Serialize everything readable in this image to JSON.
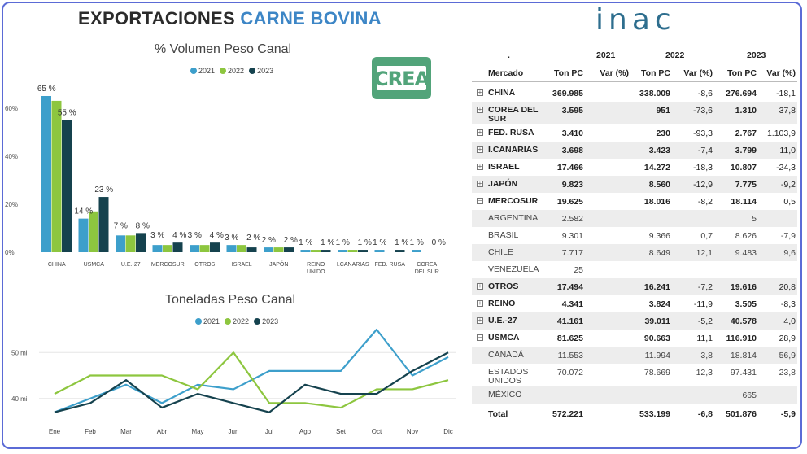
{
  "title": {
    "part1": "EXPORTACIONES",
    "part2": "CARNE BOVINA"
  },
  "logos": {
    "inac": "inac",
    "crea": "CREA"
  },
  "colors": {
    "y2021": "#3d9fcb",
    "y2022": "#8dc63f",
    "y2023": "#15424e"
  },
  "chart_data": [
    {
      "type": "bar",
      "title": "% Volumen Peso Canal",
      "legend": [
        "2021",
        "2022",
        "2023"
      ],
      "categories": [
        "CHINA",
        "USMCA",
        "U.E.-27",
        "MERCOSUR",
        "OTROS",
        "ISRAEL",
        "JAPÓN",
        "REINO UNIDO",
        "I.CANARIAS",
        "FED. RUSA",
        "COREA DEL SUR"
      ],
      "series": [
        {
          "name": "2021",
          "values": [
            65,
            14,
            7,
            3,
            3,
            3,
            2,
            1,
            1,
            1,
            1
          ]
        },
        {
          "name": "2022",
          "values": [
            63,
            17,
            7,
            3,
            3,
            3,
            2,
            1,
            1,
            0,
            0
          ]
        },
        {
          "name": "2023",
          "values": [
            55,
            23,
            8,
            4,
            4,
            2,
            2,
            1,
            1,
            1,
            0
          ]
        }
      ],
      "data_labels": [
        "65 %",
        "55 %",
        "14 %",
        "23 %",
        "7 %",
        "8 %",
        "3 %",
        "4 %",
        "3 %",
        "4 %",
        "3 %",
        "2 %",
        "2 %",
        "2 %",
        "1 %",
        "1 %",
        "1 %",
        "1 %",
        "1 %",
        "1 %",
        "1 %",
        "0 %"
      ],
      "yticks": [
        "0%",
        "20%",
        "40%",
        "60%"
      ],
      "ylim": [
        0,
        65
      ]
    },
    {
      "type": "line",
      "title": "Toneladas Peso Canal",
      "legend": [
        "2021",
        "2022",
        "2023"
      ],
      "x": [
        "Ene",
        "Feb",
        "Mar",
        "Abr",
        "May",
        "Jun",
        "Jul",
        "Ago",
        "Set",
        "Oct",
        "Nov",
        "Dic"
      ],
      "series": [
        {
          "name": "2021",
          "values": [
            37,
            40,
            43,
            39,
            43,
            42,
            46,
            46,
            46,
            55,
            45,
            49
          ]
        },
        {
          "name": "2022",
          "values": [
            41,
            45,
            45,
            45,
            42,
            50,
            39,
            39,
            38,
            42,
            42,
            44
          ]
        },
        {
          "name": "2023",
          "values": [
            37,
            39,
            44,
            38,
            41,
            39,
            37,
            43,
            41,
            41,
            46,
            50
          ]
        }
      ],
      "yticks": [
        "40 mil",
        "50 mil"
      ],
      "ylim": [
        35,
        55
      ]
    },
    {
      "type": "table",
      "header_marker": ".",
      "years": [
        "2021",
        "2022",
        "2023"
      ],
      "columns": [
        "Mercado",
        "Ton PC",
        "Var (%)",
        "Ton PC",
        "Var (%)",
        "Ton PC",
        "Var (%)"
      ],
      "rows": [
        {
          "name": "CHINA",
          "level": 0,
          "cells": [
            "369.985",
            "",
            "338.009",
            "-8,6",
            "276.694",
            "-18,1"
          ]
        },
        {
          "name": "COREA DEL SUR",
          "level": 0,
          "cells": [
            "3.595",
            "",
            "951",
            "-73,6",
            "1.310",
            "37,8"
          ]
        },
        {
          "name": "FED. RUSA",
          "level": 0,
          "cells": [
            "3.410",
            "",
            "230",
            "-93,3",
            "2.767",
            "1.103,9"
          ]
        },
        {
          "name": "I.CANARIAS",
          "level": 0,
          "cells": [
            "3.698",
            "",
            "3.423",
            "-7,4",
            "3.799",
            "11,0"
          ]
        },
        {
          "name": "ISRAEL",
          "level": 0,
          "cells": [
            "17.466",
            "",
            "14.272",
            "-18,3",
            "10.807",
            "-24,3"
          ]
        },
        {
          "name": "JAPÓN",
          "level": 0,
          "cells": [
            "9.823",
            "",
            "8.560",
            "-12,9",
            "7.775",
            "-9,2"
          ]
        },
        {
          "name": "MERCOSUR",
          "level": 0,
          "cells": [
            "19.625",
            "",
            "18.016",
            "-8,2",
            "18.114",
            "0,5"
          ]
        },
        {
          "name": "ARGENTINA",
          "level": 1,
          "cells": [
            "2.582",
            "",
            "",
            "",
            "5",
            ""
          ]
        },
        {
          "name": "BRASIL",
          "level": 1,
          "cells": [
            "9.301",
            "",
            "9.366",
            "0,7",
            "8.626",
            "-7,9"
          ]
        },
        {
          "name": "CHILE",
          "level": 1,
          "cells": [
            "7.717",
            "",
            "8.649",
            "12,1",
            "9.483",
            "9,6"
          ]
        },
        {
          "name": "VENEZUELA",
          "level": 1,
          "cells": [
            "25",
            "",
            "",
            "",
            "",
            ""
          ]
        },
        {
          "name": "OTROS",
          "level": 0,
          "cells": [
            "17.494",
            "",
            "16.241",
            "-7,2",
            "19.616",
            "20,8"
          ]
        },
        {
          "name": "REINO",
          "level": 0,
          "cells": [
            "4.341",
            "",
            "3.824",
            "-11,9",
            "3.505",
            "-8,3"
          ]
        },
        {
          "name": "U.E.-27",
          "level": 0,
          "cells": [
            "41.161",
            "",
            "39.011",
            "-5,2",
            "40.578",
            "4,0"
          ]
        },
        {
          "name": "USMCA",
          "level": 0,
          "cells": [
            "81.625",
            "",
            "90.663",
            "11,1",
            "116.910",
            "28,9"
          ]
        },
        {
          "name": "CANADÁ",
          "level": 1,
          "cells": [
            "11.553",
            "",
            "11.994",
            "3,8",
            "18.814",
            "56,9"
          ]
        },
        {
          "name": "ESTADOS UNIDOS",
          "level": 1,
          "cells": [
            "70.072",
            "",
            "78.669",
            "12,3",
            "97.431",
            "23,8"
          ]
        },
        {
          "name": "MÉXICO",
          "level": 1,
          "cells": [
            "",
            "",
            "",
            "",
            "665",
            ""
          ]
        }
      ],
      "total": {
        "name": "Total",
        "cells": [
          "572.221",
          "",
          "533.199",
          "-6,8",
          "501.876",
          "-5,9"
        ]
      }
    }
  ]
}
